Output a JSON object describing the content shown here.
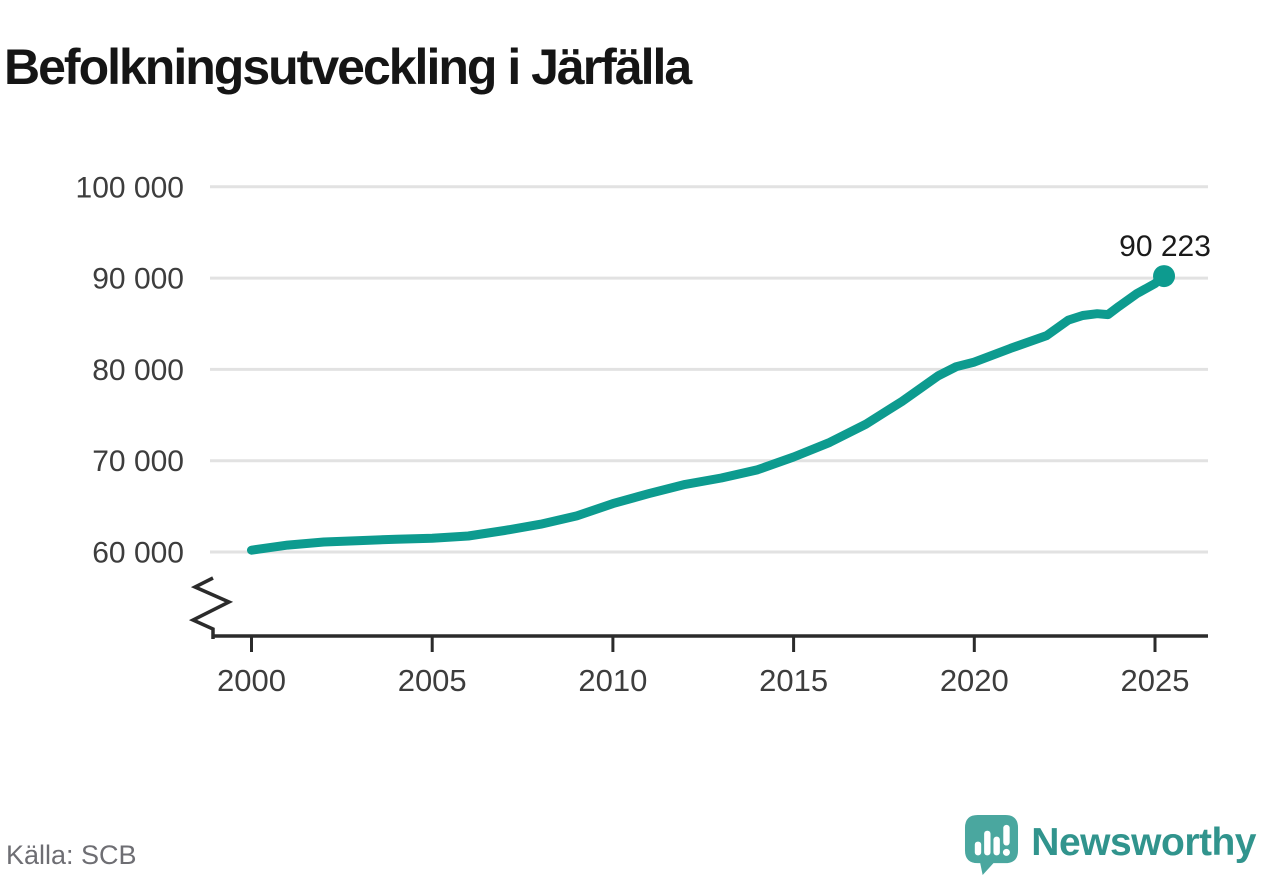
{
  "title": "Befolkningsutveckling i Järfälla",
  "source": "Källa: SCB",
  "branding": {
    "logo_text": "Newsworthy",
    "logo_icon": "newsworthy-speech-bubble-bar-chart-icon"
  },
  "colors": {
    "line": "#0d9b8f",
    "marker": "#0d9b8f",
    "grid": "#e2e2e2",
    "axis": "#2b2b2b",
    "tick_text": "#3d3d3d",
    "title_text": "#151515",
    "endpoint_text": "#1a1a1a",
    "source_text": "#6e6e73",
    "logo_fill": "#4aa79f",
    "logo_text_color": "#31948d"
  },
  "chart_data": {
    "type": "line",
    "title": "Befolkningsutveckling i Järfälla",
    "source": "Källa: SCB",
    "series_name": "Befolkning i Järfälla",
    "legend": "none",
    "grid": "horizontal gridlines only",
    "x_ticks": [
      "2000",
      "2005",
      "2010",
      "2015",
      "2020",
      "2025"
    ],
    "y_ticks": [
      "100 000",
      "90 000",
      "80 000",
      "70 000",
      "60 000"
    ],
    "y_tick_values": [
      100000,
      90000,
      80000,
      70000,
      60000
    ],
    "xlim": [
      1999.0,
      2026.5
    ],
    "ylim_displayed": [
      60000,
      100000
    ],
    "y_axis_break": true,
    "endpoint_label": "90 223",
    "latest_value": 90223,
    "points": [
      [
        2000,
        60200
      ],
      [
        2001,
        60760
      ],
      [
        2002,
        61100
      ],
      [
        2003,
        61250
      ],
      [
        2004,
        61400
      ],
      [
        2005,
        61500
      ],
      [
        2006,
        61750
      ],
      [
        2007,
        62350
      ],
      [
        2008,
        63050
      ],
      [
        2009,
        63950
      ],
      [
        2010,
        65300
      ],
      [
        2011,
        66400
      ],
      [
        2012,
        67400
      ],
      [
        2013,
        68100
      ],
      [
        2014,
        69000
      ],
      [
        2015,
        70400
      ],
      [
        2016,
        72000
      ],
      [
        2017,
        74000
      ],
      [
        2018,
        76500
      ],
      [
        2019,
        79300
      ],
      [
        2019.5,
        80300
      ],
      [
        2020,
        80800
      ],
      [
        2021,
        82300
      ],
      [
        2022,
        83700
      ],
      [
        2022.6,
        85400
      ],
      [
        2023,
        85900
      ],
      [
        2023.4,
        86100
      ],
      [
        2023.7,
        86000
      ],
      [
        2024,
        86900
      ],
      [
        2024.5,
        88300
      ],
      [
        2025,
        89400
      ],
      [
        2025.25,
        90223
      ]
    ]
  }
}
